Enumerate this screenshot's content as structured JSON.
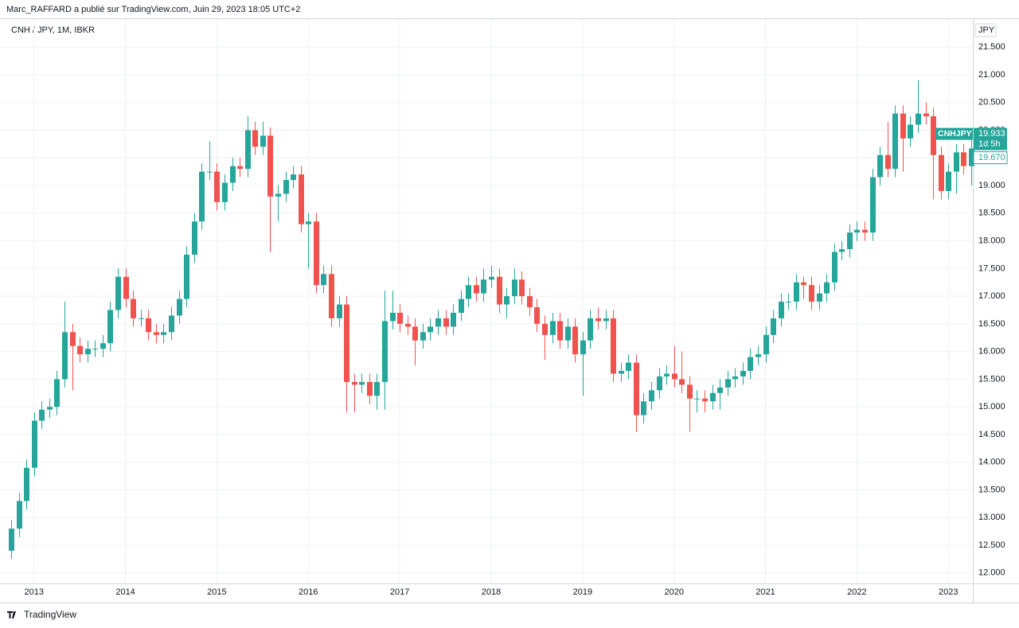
{
  "chart_data": {
    "type": "candlestick",
    "header": "Marc_RAFFARD a publié sur TradingView.com, Juin 29, 2023 18:05 UTC+2",
    "title": "CNH / JPY, 1M, IBKR",
    "axis_unit": "JPY",
    "footer": "TradingView",
    "up_color": "#26a69a",
    "down_color": "#ef5350",
    "grid": true,
    "categories": [
      null,
      null,
      null,
      "2013",
      null,
      null,
      null,
      null,
      null,
      null,
      null,
      null,
      null,
      null,
      null,
      "2014",
      null,
      null,
      null,
      null,
      null,
      null,
      null,
      null,
      null,
      null,
      null,
      "2015",
      null,
      null,
      null,
      null,
      null,
      null,
      null,
      null,
      null,
      null,
      null,
      "2016",
      null,
      null,
      null,
      null,
      null,
      null,
      null,
      null,
      null,
      null,
      null,
      "2017",
      null,
      null,
      null,
      null,
      null,
      null,
      null,
      null,
      null,
      null,
      null,
      "2018",
      null,
      null,
      null,
      null,
      null,
      null,
      null,
      null,
      null,
      null,
      null,
      "2019",
      null,
      null,
      null,
      null,
      null,
      null,
      null,
      null,
      null,
      null,
      null,
      "2020",
      null,
      null,
      null,
      null,
      null,
      null,
      null,
      null,
      null,
      null,
      null,
      "2021",
      null,
      null,
      null,
      null,
      null,
      null,
      null,
      null,
      null,
      null,
      null,
      "2022",
      null,
      null,
      null,
      null,
      null,
      null,
      null,
      null,
      null,
      null,
      null,
      "2023",
      null,
      null,
      null
    ],
    "open": [
      12.4,
      12.8,
      13.3,
      13.9,
      14.75,
      14.95,
      15.0,
      15.5,
      16.35,
      16.1,
      15.95,
      16.05,
      16.05,
      16.15,
      16.75,
      17.35,
      16.95,
      16.6,
      16.6,
      16.35,
      16.3,
      16.35,
      16.65,
      16.95,
      17.75,
      18.35,
      19.25,
      19.25,
      18.7,
      19.05,
      19.35,
      19.3,
      20.0,
      19.7,
      19.9,
      18.8,
      18.85,
      19.1,
      19.2,
      18.3,
      18.35,
      17.2,
      17.4,
      16.6,
      16.85,
      15.45,
      15.4,
      15.45,
      15.2,
      15.45,
      16.55,
      16.7,
      16.5,
      16.45,
      16.2,
      16.35,
      16.45,
      16.6,
      16.45,
      16.7,
      16.95,
      17.2,
      17.05,
      17.3,
      17.35,
      16.85,
      17.0,
      17.3,
      17.0,
      16.8,
      16.5,
      16.3,
      16.55,
      16.2,
      16.45,
      15.95,
      16.2,
      16.6,
      16.55,
      16.6,
      15.6,
      15.65,
      15.8,
      14.85,
      15.1,
      15.3,
      15.55,
      15.6,
      15.5,
      15.4,
      15.15,
      15.15,
      15.1,
      15.25,
      15.35,
      15.5,
      15.55,
      15.65,
      15.9,
      15.95,
      16.3,
      16.6,
      16.9,
      16.9,
      17.25,
      17.2,
      16.9,
      17.05,
      17.25,
      17.8,
      17.85,
      18.15,
      18.2,
      18.15,
      19.15,
      19.55,
      19.3,
      20.3,
      19.85,
      20.1,
      20.3,
      20.25,
      19.55,
      18.9,
      19.25,
      19.6,
      19.35
    ],
    "high": [
      12.95,
      13.45,
      14.05,
      14.9,
      15.1,
      15.15,
      15.65,
      16.9,
      16.5,
      16.25,
      16.2,
      16.2,
      16.3,
      16.9,
      17.5,
      17.5,
      17.1,
      16.75,
      16.75,
      16.5,
      16.5,
      16.8,
      17.1,
      17.9,
      18.5,
      19.4,
      19.8,
      19.4,
      19.2,
      19.5,
      19.5,
      20.25,
      20.15,
      20.15,
      20.05,
      19.0,
      19.25,
      19.35,
      19.35,
      18.5,
      18.5,
      17.55,
      17.55,
      17.0,
      17.0,
      15.6,
      15.6,
      15.6,
      15.6,
      17.1,
      17.1,
      16.85,
      16.65,
      16.6,
      16.5,
      16.6,
      16.75,
      16.75,
      16.85,
      17.1,
      17.35,
      17.35,
      17.5,
      17.55,
      17.5,
      17.15,
      17.5,
      17.45,
      17.15,
      16.95,
      16.65,
      16.7,
      16.7,
      16.6,
      16.6,
      16.35,
      16.75,
      16.8,
      16.75,
      16.75,
      15.8,
      15.95,
      15.95,
      15.25,
      15.45,
      15.7,
      15.75,
      16.1,
      16.0,
      15.55,
      15.3,
      15.3,
      15.4,
      15.5,
      15.65,
      15.7,
      15.8,
      16.05,
      16.1,
      16.45,
      16.75,
      17.05,
      17.05,
      17.4,
      17.35,
      17.35,
      17.2,
      17.4,
      17.95,
      18.0,
      18.3,
      18.35,
      18.35,
      19.3,
      19.7,
      20.15,
      20.45,
      20.45,
      20.25,
      20.9,
      20.5,
      20.4,
      19.7,
      19.4,
      19.75,
      19.75,
      19.9
    ],
    "low": [
      12.25,
      12.65,
      13.15,
      13.75,
      14.6,
      14.8,
      14.85,
      15.35,
      15.3,
      15.8,
      15.8,
      15.9,
      15.9,
      16.0,
      16.6,
      16.8,
      16.45,
      16.45,
      16.2,
      16.15,
      16.15,
      16.2,
      16.5,
      16.8,
      17.6,
      18.2,
      19.1,
      18.55,
      18.55,
      18.9,
      19.15,
      19.15,
      19.55,
      19.55,
      17.8,
      18.35,
      18.7,
      18.95,
      18.15,
      17.5,
      17.05,
      17.05,
      16.45,
      16.45,
      14.9,
      14.9,
      15.25,
      15.05,
      14.95,
      14.95,
      16.4,
      16.35,
      16.3,
      15.75,
      16.05,
      16.2,
      16.3,
      16.3,
      16.3,
      16.55,
      16.8,
      16.9,
      16.9,
      17.15,
      16.7,
      16.6,
      16.85,
      16.85,
      16.65,
      16.35,
      15.85,
      16.15,
      16.05,
      16.05,
      15.8,
      15.2,
      16.05,
      16.4,
      16.4,
      15.45,
      15.45,
      15.5,
      14.55,
      14.7,
      14.95,
      15.15,
      15.4,
      15.35,
      15.25,
      14.55,
      14.9,
      14.9,
      14.95,
      14.95,
      15.2,
      15.35,
      15.4,
      15.5,
      15.75,
      15.8,
      16.15,
      16.45,
      16.75,
      16.75,
      16.95,
      16.75,
      16.75,
      16.9,
      17.1,
      17.65,
      17.7,
      18.0,
      18.0,
      18.0,
      19.0,
      19.15,
      19.15,
      19.25,
      19.7,
      19.95,
      20.1,
      18.75,
      18.75,
      18.75,
      18.85,
      19.2,
      19.0
    ],
    "close": [
      12.8,
      13.3,
      13.9,
      14.75,
      14.95,
      15.0,
      15.5,
      16.35,
      16.1,
      15.95,
      16.05,
      16.05,
      16.15,
      16.75,
      17.35,
      16.95,
      16.6,
      16.6,
      16.35,
      16.3,
      16.35,
      16.65,
      16.95,
      17.75,
      18.35,
      19.25,
      19.25,
      18.7,
      19.05,
      19.35,
      19.3,
      20.0,
      19.7,
      19.9,
      18.8,
      18.85,
      19.1,
      19.2,
      18.3,
      18.35,
      17.2,
      17.4,
      16.6,
      16.85,
      15.45,
      15.4,
      15.45,
      15.2,
      15.45,
      16.55,
      16.7,
      16.5,
      16.45,
      16.2,
      16.35,
      16.45,
      16.6,
      16.45,
      16.7,
      16.95,
      17.2,
      17.05,
      17.3,
      17.35,
      16.85,
      17.0,
      17.3,
      17.0,
      16.8,
      16.5,
      16.3,
      16.55,
      16.2,
      16.45,
      15.95,
      16.2,
      16.6,
      16.55,
      16.6,
      15.6,
      15.65,
      15.8,
      14.85,
      15.1,
      15.3,
      15.55,
      15.6,
      15.5,
      15.4,
      15.15,
      15.15,
      15.1,
      15.25,
      15.35,
      15.5,
      15.55,
      15.65,
      15.9,
      15.95,
      16.3,
      16.6,
      16.9,
      16.9,
      17.25,
      17.2,
      16.9,
      17.05,
      17.25,
      17.8,
      17.85,
      18.15,
      18.2,
      18.15,
      19.15,
      19.55,
      19.3,
      20.3,
      19.85,
      20.1,
      20.3,
      20.25,
      19.55,
      18.9,
      19.25,
      19.6,
      19.35,
      19.67
    ],
    "ylim": [
      11.81,
      21.92
    ],
    "yticks": [
      {
        "value": 12,
        "label": "12.000"
      },
      {
        "value": 12.5,
        "label": "12.500"
      },
      {
        "value": 13,
        "label": "13.000"
      },
      {
        "value": 13.5,
        "label": "13.500"
      },
      {
        "value": 14,
        "label": "14.000"
      },
      {
        "value": 14.5,
        "label": "14.500"
      },
      {
        "value": 15,
        "label": "15.000"
      },
      {
        "value": 15.5,
        "label": "15.500"
      },
      {
        "value": 16,
        "label": "16.000"
      },
      {
        "value": 16.5,
        "label": "16.500"
      },
      {
        "value": 17,
        "label": "17.000"
      },
      {
        "value": 17.5,
        "label": "17.500"
      },
      {
        "value": 18,
        "label": "18.000"
      },
      {
        "value": 18.5,
        "label": "18.500"
      },
      {
        "value": 19,
        "label": "19.000"
      },
      {
        "value": 19.5,
        "label": "19.500"
      },
      {
        "value": 20,
        "label": "20.000"
      },
      {
        "value": 20.5,
        "label": "20.500"
      },
      {
        "value": 21,
        "label": "21.000"
      },
      {
        "value": 21.5,
        "label": "21.500"
      }
    ],
    "price_labels": [
      {
        "name": "CNHJPY",
        "value": 19.933,
        "label": "19.933",
        "countdown": "1d 5h"
      },
      {
        "value": 19.67,
        "label": "19.670"
      }
    ]
  }
}
